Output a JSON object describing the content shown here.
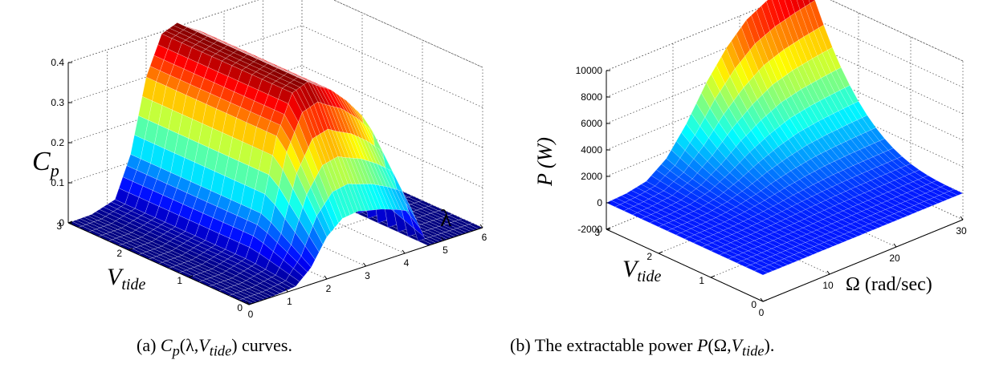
{
  "chart_data": [
    {
      "type": "surface",
      "zlabel": "C",
      "zlabel_sub": "p",
      "xlabel": "λ",
      "ylabel": "V",
      "ylabel_sub": "tide",
      "z_ticks": [
        "0",
        "0.1",
        "0.2",
        "0.3",
        "0.4"
      ],
      "x_ticks": [
        "0",
        "1",
        "2",
        "3",
        "4",
        "5",
        "6"
      ],
      "y_ticks": [
        "0",
        "1",
        "2",
        "3"
      ],
      "xlim": [
        0,
        6
      ],
      "ylim": [
        0,
        3
      ],
      "zlim": [
        0,
        0.4
      ],
      "colormap": "jet",
      "grid": true,
      "surface_profile": {
        "lambda": [
          0,
          0.6,
          1.2,
          1.6,
          2.0,
          2.4,
          2.8,
          3.0,
          3.4,
          3.8,
          4.2,
          4.6,
          5.0,
          5.4,
          6.0
        ],
        "cp": [
          0,
          0.002,
          0.02,
          0.12,
          0.3,
          0.395,
          0.41,
          0.395,
          0.37,
          0.33,
          0.28,
          0.0,
          0.0,
          0.0,
          0.0
        ]
      },
      "caption_prefix": "(a) ",
      "caption_c": "C",
      "caption_p": "p",
      "caption_mid": "(λ,",
      "caption_v": "V",
      "caption_tide": "tide",
      "caption_end": ") curves."
    },
    {
      "type": "surface",
      "zlabel": "P (W)",
      "xlabel": "Ω (rad/sec)",
      "ylabel": "V",
      "ylabel_sub": "tide",
      "z_ticks": [
        "-2000",
        "0",
        "2000",
        "4000",
        "6000",
        "8000",
        "10000"
      ],
      "x_ticks": [
        "0",
        "10",
        "20",
        "30"
      ],
      "y_ticks": [
        "0",
        "1",
        "2",
        "3"
      ],
      "xlim": [
        0,
        30
      ],
      "ylim": [
        0,
        3
      ],
      "zlim": [
        -2000,
        10000
      ],
      "colormap": "jet",
      "grid": true,
      "surface_profile": {
        "omega": [
          0,
          3,
          6,
          9,
          12,
          15,
          18,
          21,
          24,
          27,
          30
        ],
        "power_at_vmax": [
          0,
          100,
          400,
          1500,
          3500,
          6000,
          8000,
          9500,
          10300,
          10800,
          11200
        ]
      },
      "caption_prefix": "(b) The extractable power ",
      "caption_p": "P",
      "caption_mid": "(Ω,",
      "caption_v": "V",
      "caption_tide": "tide",
      "caption_end": ")."
    }
  ]
}
